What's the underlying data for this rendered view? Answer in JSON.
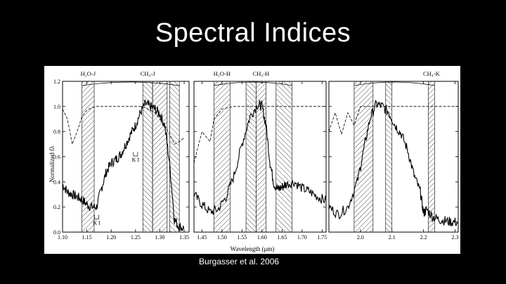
{
  "slide": {
    "title": "Spectral Indices",
    "caption": "Burgasser et al. 2006"
  },
  "chart_data": [
    {
      "type": "line",
      "panel": "J",
      "ylabel": "Normalized fλ",
      "xlim": [
        1.1,
        1.36
      ],
      "ylim": [
        0.0,
        1.2
      ],
      "xticks": [
        "1.10",
        "1.15",
        "1.20",
        "1.25",
        "1.30",
        "1.35"
      ],
      "yticks": [
        "0.0",
        "0.2",
        "0.4",
        "0.6",
        "0.8",
        "1.0",
        "1.2"
      ],
      "bands": [
        {
          "label": "H₂O-J",
          "range": [
            1.14,
            1.165
          ]
        },
        {
          "label": "CH₄-J",
          "range": [
            1.265,
            1.285
          ]
        },
        {
          "label": "",
          "range": [
            1.285,
            1.315
          ]
        },
        {
          "label": "",
          "range": [
            1.32,
            1.34
          ]
        }
      ],
      "annotations": [
        {
          "text": "K I",
          "x": 1.25,
          "y": 0.56
        },
        {
          "text": "K I",
          "x": 1.17,
          "y": 0.06
        }
      ],
      "series": [
        {
          "style": "solid",
          "x": [
            1.1,
            1.11,
            1.12,
            1.13,
            1.14,
            1.15,
            1.16,
            1.17,
            1.18,
            1.19,
            1.2,
            1.21,
            1.22,
            1.23,
            1.24,
            1.25,
            1.26,
            1.27,
            1.28,
            1.29,
            1.3,
            1.31,
            1.32,
            1.33,
            1.34,
            1.35
          ],
          "y": [
            0.38,
            0.32,
            0.3,
            0.28,
            0.26,
            0.22,
            0.2,
            0.2,
            0.35,
            0.48,
            0.55,
            0.58,
            0.62,
            0.7,
            0.78,
            0.85,
            0.95,
            1.02,
            1.0,
            0.98,
            0.94,
            0.85,
            0.55,
            0.1,
            0.04,
            0.03
          ]
        },
        {
          "style": "dashed",
          "x": [
            1.1,
            1.11,
            1.12,
            1.13,
            1.14,
            1.15,
            1.16,
            1.17,
            1.18,
            1.19,
            1.2,
            1.21,
            1.22,
            1.23,
            1.24,
            1.25,
            1.26,
            1.27,
            1.28,
            1.29,
            1.3,
            1.31,
            1.32,
            1.33,
            1.34,
            1.35
          ],
          "y": [
            0.98,
            0.9,
            0.7,
            0.8,
            0.92,
            0.97,
            0.99,
            1.0,
            1.0,
            1.0,
            1.0,
            1.0,
            1.0,
            1.0,
            1.0,
            1.0,
            1.0,
            0.99,
            0.97,
            0.95,
            0.9,
            0.85,
            0.78,
            0.7,
            0.72,
            0.75
          ]
        }
      ]
    },
    {
      "type": "line",
      "panel": "H",
      "xlim": [
        1.43,
        1.76
      ],
      "ylim": [
        0.0,
        1.2
      ],
      "xticks": [
        "1.45",
        "1.50",
        "1.55",
        "1.60",
        "1.65",
        "1.70",
        "1.75"
      ],
      "bands": [
        {
          "label": "H₂O-H",
          "range": [
            1.48,
            1.52
          ]
        },
        {
          "label": "",
          "range": [
            1.56,
            1.585
          ]
        },
        {
          "label": "CH₄-H",
          "range": [
            1.585,
            1.61
          ]
        },
        {
          "label": "",
          "range": [
            1.635,
            1.675
          ]
        }
      ],
      "series": [
        {
          "style": "solid",
          "x": [
            1.43,
            1.45,
            1.47,
            1.49,
            1.51,
            1.53,
            1.55,
            1.57,
            1.59,
            1.6,
            1.61,
            1.62,
            1.63,
            1.64,
            1.65,
            1.66,
            1.68,
            1.7,
            1.72,
            1.74,
            1.76
          ],
          "y": [
            0.3,
            0.22,
            0.16,
            0.18,
            0.28,
            0.45,
            0.7,
            0.92,
            1.02,
            1.0,
            0.85,
            0.55,
            0.38,
            0.34,
            0.36,
            0.38,
            0.4,
            0.35,
            0.32,
            0.28,
            0.25
          ]
        },
        {
          "style": "dashed",
          "x": [
            1.43,
            1.45,
            1.47,
            1.48,
            1.5,
            1.53,
            1.56,
            1.6,
            1.65,
            1.7,
            1.76
          ],
          "y": [
            0.55,
            0.8,
            0.72,
            0.9,
            0.98,
            1.0,
            1.0,
            1.0,
            1.0,
            1.0,
            1.0
          ]
        }
      ]
    },
    {
      "type": "line",
      "panel": "K",
      "xlim": [
        1.9,
        2.31
      ],
      "ylim": [
        0.0,
        1.2
      ],
      "xticks": [
        "2.0",
        "2.1",
        "2.2",
        "2.3"
      ],
      "bands": [
        {
          "label": "",
          "range": [
            1.98,
            2.04
          ]
        },
        {
          "label": "",
          "range": [
            2.08,
            2.1
          ]
        },
        {
          "label": "CH₄-K",
          "range": [
            2.215,
            2.235
          ]
        }
      ],
      "series": [
        {
          "style": "solid",
          "x": [
            1.9,
            1.93,
            1.96,
            1.99,
            2.01,
            2.03,
            2.05,
            2.07,
            2.09,
            2.11,
            2.13,
            2.15,
            2.17,
            2.19,
            2.2,
            2.21,
            2.23,
            2.25,
            2.27,
            2.29,
            2.31
          ],
          "y": [
            0.2,
            0.14,
            0.2,
            0.4,
            0.65,
            0.9,
            1.02,
            1.0,
            0.95,
            0.85,
            0.78,
            0.65,
            0.45,
            0.32,
            0.15,
            0.18,
            0.12,
            0.1,
            0.09,
            0.08,
            0.08
          ]
        },
        {
          "style": "dashed",
          "x": [
            1.9,
            1.92,
            1.94,
            1.96,
            1.98,
            2.0,
            2.03,
            2.06,
            2.1,
            2.15,
            2.2,
            2.25,
            2.31
          ],
          "y": [
            0.8,
            0.95,
            0.78,
            0.95,
            0.85,
            1.0,
            1.0,
            1.0,
            1.0,
            1.0,
            1.0,
            1.0,
            1.0
          ]
        }
      ]
    }
  ],
  "figure": {
    "xlabel": "Wavelength (μm)"
  }
}
